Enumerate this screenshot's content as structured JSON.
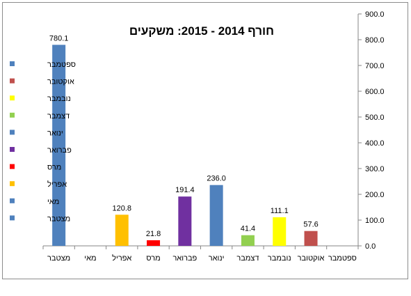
{
  "chart_data": {
    "type": "bar",
    "title": "חורף 2014 - 2015: משקעים",
    "categories": [
      "מצטבר",
      "מאי",
      "אפריל",
      "מרס",
      "פברואר",
      "ינואר",
      "דצמבר",
      "נובמבר",
      "אוקטובר",
      "ספטמבר"
    ],
    "values": [
      780.1,
      null,
      120.8,
      21.8,
      191.4,
      236.0,
      41.4,
      111.1,
      57.6,
      null
    ],
    "value_labels": [
      "780.1",
      "",
      "120.8",
      "21.8",
      "191.4",
      "236.0",
      "41.4",
      "111.1",
      "57.6",
      ""
    ],
    "colors": [
      "#4F81BD",
      "#4F81BD",
      "#FFC000",
      "#FF0000",
      "#7030A0",
      "#4F81BD",
      "#92D050",
      "#FFFF00",
      "#C0504D",
      "#4F81BD"
    ],
    "ylim": [
      0,
      900
    ],
    "yticks": [
      "0.0",
      "100.0",
      "200.0",
      "300.0",
      "400.0",
      "500.0",
      "600.0",
      "700.0",
      "800.0",
      "900.0"
    ],
    "y_axis_side": "right",
    "grid": false,
    "legend_position": "left",
    "legend": [
      {
        "label": "ספטמבר",
        "color": "#4F81BD"
      },
      {
        "label": "אוקטובר",
        "color": "#C0504D"
      },
      {
        "label": "נובמבר",
        "color": "#FFFF00"
      },
      {
        "label": "דצמבר",
        "color": "#92D050"
      },
      {
        "label": "ינואר",
        "color": "#4F81BD"
      },
      {
        "label": "פברואר",
        "color": "#7030A0"
      },
      {
        "label": "מרס",
        "color": "#FF0000"
      },
      {
        "label": "אפריל",
        "color": "#FFC000"
      },
      {
        "label": "מאי",
        "color": "#4F81BD"
      },
      {
        "label": "מצטבר",
        "color": "#4F81BD"
      }
    ]
  }
}
